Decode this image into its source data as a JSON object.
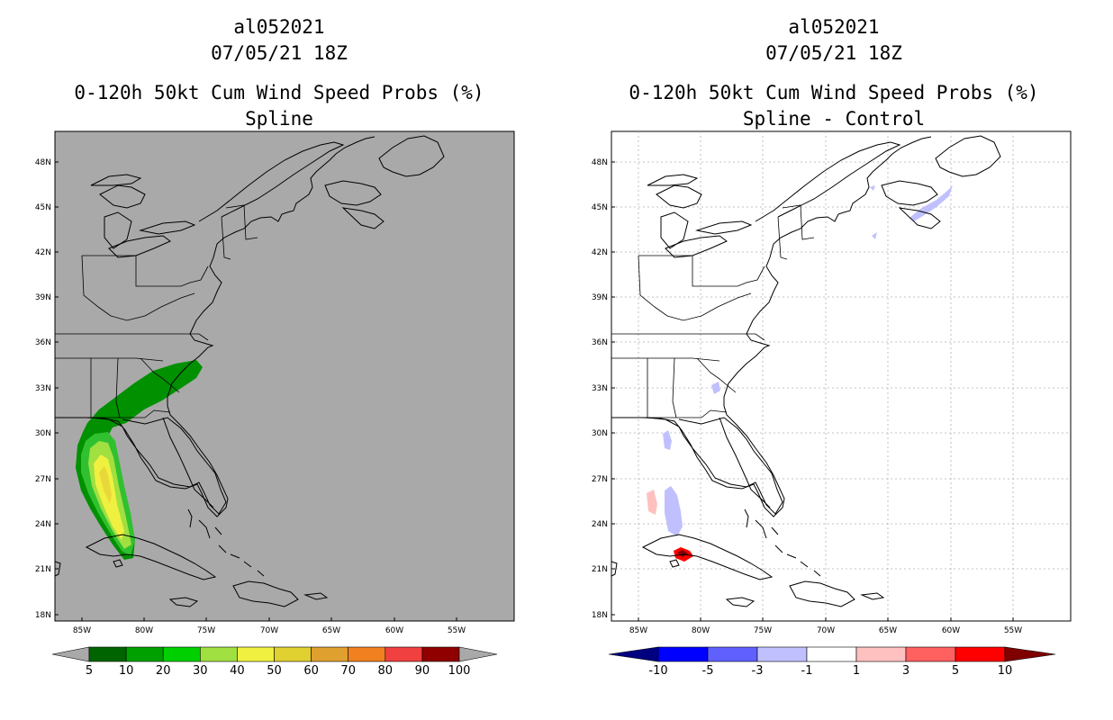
{
  "panels": [
    {
      "storm_id": "al052021",
      "datetime": "07/05/21 18Z",
      "product": "0-120h 50kt Cum Wind Speed Probs (%)",
      "subtitle": "Spline",
      "background": "#a9a9a9",
      "lat_labels": [
        "48N",
        "45N",
        "42N",
        "39N",
        "36N",
        "33N",
        "30N",
        "27N",
        "24N",
        "21N",
        "18N"
      ],
      "lon_labels": [
        "85W",
        "80W",
        "75W",
        "70W",
        "65W",
        "60W",
        "55W"
      ],
      "colorbar": {
        "colors": [
          "#006400",
          "#00a000",
          "#00d000",
          "#a0e040",
          "#f0f040",
          "#e0d030",
          "#e0a030",
          "#f08020",
          "#f04040",
          "#900000",
          "#8000ff"
        ],
        "labels": [
          "5",
          "10",
          "20",
          "30",
          "40",
          "50",
          "60",
          "70",
          "80",
          "90",
          "100"
        ]
      }
    },
    {
      "storm_id": "al052021",
      "datetime": "07/05/21 18Z",
      "product": "0-120h 50kt Cum Wind Speed Probs (%)",
      "subtitle": "Spline - Control",
      "background": "#ffffff",
      "lat_labels": [
        "48N",
        "45N",
        "42N",
        "39N",
        "36N",
        "33N",
        "30N",
        "27N",
        "24N",
        "21N",
        "18N"
      ],
      "lon_labels": [
        "85W",
        "80W",
        "75W",
        "70W",
        "65W",
        "60W",
        "55W"
      ],
      "colorbar": {
        "colors": [
          "#000080",
          "#0000ff",
          "#6060ff",
          "#c0c0ff",
          "#ffffff",
          "#ffc0c0",
          "#ff6060",
          "#ff0000",
          "#800000"
        ],
        "labels": [
          "-10",
          "-5",
          "-3",
          "-1",
          "1",
          "3",
          "5",
          "10"
        ]
      }
    }
  ]
}
